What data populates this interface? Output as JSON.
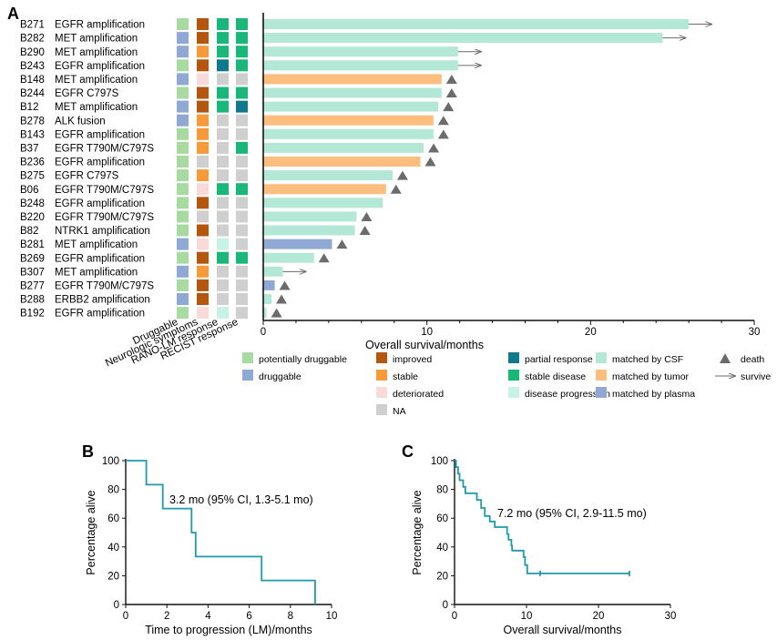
{
  "colors": {
    "potentially_druggable": "#a8dba1",
    "druggable": "#8fa8d4",
    "improved": "#b5560f",
    "stable": "#f79a3a",
    "deteriorated": "#fad9d9",
    "na": "#cfcfcf",
    "partial_response": "#107a8c",
    "stable_disease": "#19b87a",
    "disease_progression": "#c8f2e4",
    "matched_by_csf": "#b4e8d6",
    "matched_by_tumor": "#fbbe7e",
    "matched_by_plasma": "#8fa8d4",
    "death_marker": "#6b6b6b",
    "survive_arrow": "#6b6b6b",
    "km_line": "#1f9aaa"
  },
  "chart_data": [
    {
      "panel": "A",
      "type": "bar",
      "orientation": "horizontal",
      "xlabel": "Overall survival/months",
      "xlim": [
        0,
        30
      ],
      "xticks": [
        "0",
        "10",
        "20",
        "30"
      ],
      "track_labels": [
        "Druggable",
        "Neurologic symptoms",
        "RANO-LM response",
        "RECIST response"
      ],
      "patients": [
        {
          "id": "B271",
          "alteration": "EGFR amplification",
          "druggable": "potentially_druggable",
          "neuro": "improved",
          "rano": "stable_disease",
          "recist": "stable_disease",
          "os": 26.0,
          "source": "matched_by_csf",
          "status": "survive"
        },
        {
          "id": "B282",
          "alteration": "MET amplification",
          "druggable": "druggable",
          "neuro": "improved",
          "rano": "stable_disease",
          "recist": "stable_disease",
          "os": 24.4,
          "source": "matched_by_csf",
          "status": "survive"
        },
        {
          "id": "B290",
          "alteration": "MET amplification",
          "druggable": "druggable",
          "neuro": "stable",
          "rano": "stable_disease",
          "recist": "stable_disease",
          "os": 11.9,
          "source": "matched_by_csf",
          "status": "survive"
        },
        {
          "id": "B243",
          "alteration": "EGFR amplification",
          "druggable": "potentially_druggable",
          "neuro": "improved",
          "rano": "partial_response",
          "recist": "stable_disease",
          "os": 11.9,
          "source": "matched_by_csf",
          "status": "survive"
        },
        {
          "id": "B148",
          "alteration": "MET amplification",
          "druggable": "druggable",
          "neuro": "deteriorated",
          "rano": "na",
          "recist": "na",
          "os": 10.9,
          "source": "matched_by_tumor",
          "status": "death"
        },
        {
          "id": "B244",
          "alteration": "EGFR C797S",
          "druggable": "potentially_druggable",
          "neuro": "improved",
          "rano": "stable_disease",
          "recist": "stable_disease",
          "os": 10.9,
          "source": "matched_by_csf",
          "status": "death"
        },
        {
          "id": "B12",
          "alteration": "MET amplification",
          "druggable": "druggable",
          "neuro": "improved",
          "rano": "stable_disease",
          "recist": "partial_response",
          "os": 10.7,
          "source": "matched_by_csf",
          "status": "death"
        },
        {
          "id": "B278",
          "alteration": "ALK fusion",
          "druggable": "druggable",
          "neuro": "stable",
          "rano": "na",
          "recist": "na",
          "os": 10.4,
          "source": "matched_by_tumor",
          "status": "death"
        },
        {
          "id": "B143",
          "alteration": "EGFR amplification",
          "druggable": "potentially_druggable",
          "neuro": "stable",
          "rano": "na",
          "recist": "na",
          "os": 10.4,
          "source": "matched_by_csf",
          "status": "death"
        },
        {
          "id": "B37",
          "alteration": "EGFR T790M/C797S",
          "druggable": "potentially_druggable",
          "neuro": "stable",
          "rano": "na",
          "recist": "stable_disease",
          "os": 9.8,
          "source": "matched_by_csf",
          "status": "death"
        },
        {
          "id": "B236",
          "alteration": "EGFR amplification",
          "druggable": "potentially_druggable",
          "neuro": "na",
          "rano": "na",
          "recist": "na",
          "os": 9.6,
          "source": "matched_by_tumor",
          "status": "death"
        },
        {
          "id": "B275",
          "alteration": "EGFR C797S",
          "druggable": "potentially_druggable",
          "neuro": "stable",
          "rano": "na",
          "recist": "na",
          "os": 7.9,
          "source": "matched_by_csf",
          "status": "death"
        },
        {
          "id": "B06",
          "alteration": "EGFR T790M/C797S",
          "druggable": "potentially_druggable",
          "neuro": "deteriorated",
          "rano": "stable_disease",
          "recist": "stable_disease",
          "os": 7.5,
          "source": "matched_by_tumor",
          "status": "death"
        },
        {
          "id": "B248",
          "alteration": "EGFR amplification",
          "druggable": "potentially_druggable",
          "neuro": "improved",
          "rano": "na",
          "recist": "na",
          "os": 7.3,
          "source": "matched_by_csf",
          "status": "none"
        },
        {
          "id": "B220",
          "alteration": "EGFR T790M/C797S",
          "druggable": "potentially_druggable",
          "neuro": "na",
          "rano": "na",
          "recist": "na",
          "os": 5.7,
          "source": "matched_by_csf",
          "status": "death"
        },
        {
          "id": "B82",
          "alteration": "NTRK1 amplification",
          "druggable": "potentially_druggable",
          "neuro": "improved",
          "rano": "na",
          "recist": "na",
          "os": 5.6,
          "source": "matched_by_csf",
          "status": "death"
        },
        {
          "id": "B281",
          "alteration": "MET amplification",
          "druggable": "druggable",
          "neuro": "deteriorated",
          "rano": "disease_progression",
          "recist": "na",
          "os": 4.2,
          "source": "matched_by_plasma",
          "status": "death"
        },
        {
          "id": "B269",
          "alteration": "EGFR amplification",
          "druggable": "potentially_druggable",
          "neuro": "improved",
          "rano": "stable_disease",
          "recist": "stable_disease",
          "os": 3.1,
          "source": "matched_by_csf",
          "status": "death"
        },
        {
          "id": "B307",
          "alteration": "MET amplification",
          "druggable": "druggable",
          "neuro": "stable",
          "rano": "na",
          "recist": "na",
          "os": 1.2,
          "source": "matched_by_csf",
          "status": "survive"
        },
        {
          "id": "B277",
          "alteration": "EGFR T790M/C797S",
          "druggable": "potentially_druggable",
          "neuro": "improved",
          "rano": "na",
          "recist": "na",
          "os": 0.7,
          "source": "matched_by_plasma",
          "status": "death"
        },
        {
          "id": "B288",
          "alteration": "ERBB2 amplification",
          "druggable": "druggable",
          "neuro": "improved",
          "rano": "na",
          "recist": "na",
          "os": 0.5,
          "source": "matched_by_csf",
          "status": "death"
        },
        {
          "id": "B192",
          "alteration": "EGFR amplification",
          "druggable": "potentially_druggable",
          "neuro": "deteriorated",
          "rano": "disease_progression",
          "recist": "na",
          "os": 0.2,
          "source": "matched_by_csf",
          "status": "death"
        }
      ],
      "legend": {
        "col1": [
          {
            "key": "potentially_druggable",
            "label": "potentially druggable"
          },
          {
            "key": "druggable",
            "label": "druggable"
          }
        ],
        "col2": [
          {
            "key": "improved",
            "label": "improved"
          },
          {
            "key": "stable",
            "label": "stable"
          },
          {
            "key": "deteriorated",
            "label": "deteriorated"
          },
          {
            "key": "na",
            "label": "NA"
          }
        ],
        "col3": [
          {
            "key": "partial_response",
            "label": "partial response"
          },
          {
            "key": "stable_disease",
            "label": "stable disease"
          },
          {
            "key": "disease_progression",
            "label": "disease progression"
          }
        ],
        "col4": [
          {
            "key": "matched_by_csf",
            "label": "matched by CSF"
          },
          {
            "key": "matched_by_tumor",
            "label": "matched by tumor"
          },
          {
            "key": "matched_by_plasma",
            "label": "matched by plasma"
          }
        ],
        "col5": [
          {
            "key": "death",
            "label": "death"
          },
          {
            "key": "survive",
            "label": "survive"
          }
        ]
      }
    },
    {
      "panel": "B",
      "type": "line",
      "subtype": "kaplan-meier",
      "xlabel": "Time to progression (LM)/months",
      "ylabel": "Percentage alive",
      "xlim": [
        0,
        10
      ],
      "ylim": [
        0,
        100
      ],
      "xticks": [
        0,
        2,
        4,
        6,
        8,
        10
      ],
      "yticks": [
        0,
        20,
        40,
        60,
        80,
        100
      ],
      "annotation": "3.2 mo (95% CI, 1.3-5.1 mo)",
      "steps": [
        [
          0,
          100
        ],
        [
          1.0,
          100
        ],
        [
          1.0,
          83.3
        ],
        [
          1.8,
          83.3
        ],
        [
          1.8,
          66.7
        ],
        [
          3.2,
          66.7
        ],
        [
          3.2,
          50
        ],
        [
          3.4,
          50
        ],
        [
          3.4,
          33.3
        ],
        [
          6.6,
          33.3
        ],
        [
          6.6,
          16.7
        ],
        [
          9.2,
          16.7
        ],
        [
          9.2,
          0
        ]
      ],
      "censored": []
    },
    {
      "panel": "C",
      "type": "line",
      "subtype": "kaplan-meier",
      "xlabel": "Overall survival/months",
      "ylabel": "Percentage alive",
      "xlim": [
        0,
        30
      ],
      "ylim": [
        0,
        100
      ],
      "xticks": [
        0,
        10,
        20,
        30
      ],
      "yticks": [
        0,
        20,
        40,
        60,
        80,
        100
      ],
      "annotation": "7.2 mo (95% CI, 2.9-11.5 mo)",
      "steps": [
        [
          0,
          100
        ],
        [
          0.2,
          100
        ],
        [
          0.2,
          95.5
        ],
        [
          0.5,
          95.5
        ],
        [
          0.5,
          90.9
        ],
        [
          0.7,
          90.9
        ],
        [
          0.7,
          86.4
        ],
        [
          1.2,
          86.4
        ],
        [
          1.2,
          81.8
        ],
        [
          1.5,
          81.8
        ],
        [
          1.5,
          77.3
        ],
        [
          3.1,
          77.3
        ],
        [
          3.1,
          72.7
        ],
        [
          3.7,
          72.7
        ],
        [
          3.7,
          67.1
        ],
        [
          4.2,
          67.1
        ],
        [
          4.2,
          61.5
        ],
        [
          4.9,
          61.5
        ],
        [
          4.9,
          57.7
        ],
        [
          5.6,
          57.7
        ],
        [
          5.6,
          53.8
        ],
        [
          7.3,
          53.8
        ],
        [
          7.3,
          49.0
        ],
        [
          7.5,
          49.0
        ],
        [
          7.5,
          45.0
        ],
        [
          7.9,
          45.0
        ],
        [
          7.9,
          41.0
        ],
        [
          8.0,
          41.0
        ],
        [
          8.0,
          37.5
        ],
        [
          9.6,
          37.5
        ],
        [
          9.6,
          33.0
        ],
        [
          9.8,
          33.0
        ],
        [
          9.8,
          27.4
        ],
        [
          10.1,
          27.4
        ],
        [
          10.1,
          21.6
        ],
        [
          24.3,
          21.6
        ]
      ],
      "censored": [
        [
          11.9,
          21.6
        ],
        [
          24.3,
          21.6
        ]
      ]
    }
  ],
  "panel_letters": {
    "a": "A",
    "b": "B",
    "c": "C"
  }
}
